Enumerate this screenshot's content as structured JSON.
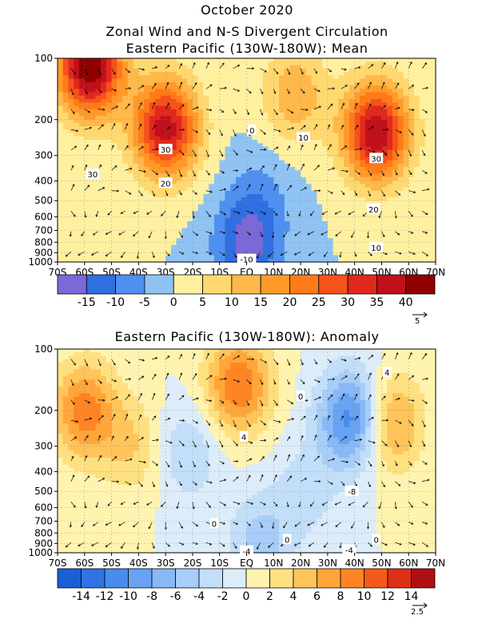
{
  "page": {
    "title_line1": "October 2020"
  },
  "chart_data": [
    {
      "type": "heatmap",
      "title": "Zonal Wind and N-S Divergent Circulation",
      "subtitle": "Eastern Pacific (130W-180W): Mean",
      "x_ticks": [
        "70S",
        "60S",
        "50S",
        "40S",
        "30S",
        "20S",
        "10S",
        "EQ",
        "10N",
        "20N",
        "30N",
        "40N",
        "50N",
        "60N",
        "70N"
      ],
      "x_values": [
        -70,
        -60,
        -50,
        -40,
        -30,
        -20,
        -10,
        0,
        10,
        20,
        30,
        40,
        50,
        60,
        70
      ],
      "y_ticks": [
        "100",
        "200",
        "300",
        "400",
        "500",
        "600",
        "700",
        "800",
        "900",
        "1000"
      ],
      "y_values": [
        100,
        200,
        300,
        400,
        500,
        600,
        700,
        800,
        900,
        1000
      ],
      "xlim": [
        -70,
        70
      ],
      "ylim": [
        1000,
        100
      ],
      "y_scale": "log",
      "colorbar_levels": [
        -20,
        -15,
        -10,
        -5,
        0,
        5,
        10,
        15,
        20,
        25,
        30,
        35,
        40,
        45
      ],
      "colorbar_labels": [
        "-15",
        "-10",
        "-5",
        "0",
        "5",
        "10",
        "15",
        "20",
        "25",
        "30",
        "35",
        "40"
      ],
      "colorbar_colors": [
        "#7b68d9",
        "#2f6fe0",
        "#4f8ff0",
        "#8ec3f4",
        "#fff0a0",
        "#ffd870",
        "#ffb84a",
        "#ff9a2a",
        "#ff7a18",
        "#f5521c",
        "#e0281e",
        "#c0101a",
        "#900000"
      ],
      "contour_labels": [
        {
          "text": "30",
          "lat": -57,
          "p": 370
        },
        {
          "text": "30",
          "lat": -30,
          "p": 280
        },
        {
          "text": "20",
          "lat": -30,
          "p": 410
        },
        {
          "text": "0",
          "lat": 2,
          "p": 225
        },
        {
          "text": "10",
          "lat": 21,
          "p": 245
        },
        {
          "text": "30",
          "lat": 48,
          "p": 310
        },
        {
          "text": "20",
          "lat": 47,
          "p": 550
        },
        {
          "text": "10",
          "lat": 48,
          "p": 850
        },
        {
          "text": "-10",
          "lat": 0,
          "p": 970
        }
      ],
      "field_centers": [
        {
          "lat": -58,
          "p": 110,
          "value": 45
        },
        {
          "lat": -30,
          "p": 220,
          "value": 38
        },
        {
          "lat": 48,
          "p": 230,
          "value": 40
        },
        {
          "lat": 18,
          "p": 150,
          "value": 14
        },
        {
          "lat": 0,
          "p": 850,
          "value": -16
        },
        {
          "lat": 5,
          "p": 500,
          "value": -6
        }
      ],
      "vector_reference": "5",
      "vector_reference_value": 5
    },
    {
      "type": "heatmap",
      "title": "Eastern Pacific (130W-180W): Anomaly",
      "x_ticks": [
        "70S",
        "60S",
        "50S",
        "40S",
        "30S",
        "20S",
        "10S",
        "EQ",
        "10N",
        "20N",
        "30N",
        "40N",
        "50N",
        "60N",
        "70N"
      ],
      "x_values": [
        -70,
        -60,
        -50,
        -40,
        -30,
        -20,
        -10,
        0,
        10,
        20,
        30,
        40,
        50,
        60,
        70
      ],
      "y_ticks": [
        "100",
        "200",
        "300",
        "400",
        "500",
        "600",
        "700",
        "800",
        "900",
        "1000"
      ],
      "y_values": [
        100,
        200,
        300,
        400,
        500,
        600,
        700,
        800,
        900,
        1000
      ],
      "xlim": [
        -70,
        70
      ],
      "ylim": [
        1000,
        100
      ],
      "y_scale": "log",
      "colorbar_levels": [
        -16,
        -14,
        -12,
        -10,
        -8,
        -6,
        -4,
        -2,
        0,
        2,
        4,
        6,
        8,
        10,
        12,
        14,
        16
      ],
      "colorbar_labels": [
        "-14",
        "-12",
        "-10",
        "-8",
        "-6",
        "-4",
        "-2",
        "0",
        "2",
        "4",
        "6",
        "8",
        "10",
        "12",
        "14"
      ],
      "colorbar_colors": [
        "#1a5fd6",
        "#2f73e4",
        "#4a8bee",
        "#68a3f3",
        "#88b9f6",
        "#a7cdf8",
        "#c2def9",
        "#dcecf8",
        "#fff3b0",
        "#ffe080",
        "#ffc45a",
        "#ffa63a",
        "#ff8424",
        "#f55a1a",
        "#de3018",
        "#b00f12"
      ],
      "contour_labels": [
        {
          "text": "4",
          "lat": 52,
          "p": 130
        },
        {
          "text": "0",
          "lat": 20,
          "p": 170
        },
        {
          "text": "4",
          "lat": -1,
          "p": 270
        },
        {
          "text": "-8",
          "lat": 39,
          "p": 500
        },
        {
          "text": "0",
          "lat": -12,
          "p": 720
        },
        {
          "text": "0",
          "lat": 15,
          "p": 860
        },
        {
          "text": "0",
          "lat": 48,
          "p": 860
        },
        {
          "text": "-4",
          "lat": 0,
          "p": 980
        },
        {
          "text": "-4",
          "lat": 38,
          "p": 970
        }
      ],
      "field_centers": [
        {
          "lat": -60,
          "p": 200,
          "value": 9
        },
        {
          "lat": -3,
          "p": 150,
          "value": 10
        },
        {
          "lat": 53,
          "p": 230,
          "value": 8
        },
        {
          "lat": 39,
          "p": 220,
          "value": -12
        },
        {
          "lat": -22,
          "p": 320,
          "value": -4
        },
        {
          "lat": 22,
          "p": 500,
          "value": -3
        },
        {
          "lat": -42,
          "p": 300,
          "value": 4
        },
        {
          "lat": 5,
          "p": 900,
          "value": -5
        }
      ],
      "vector_reference": "2.5",
      "vector_reference_value": 2.5
    }
  ]
}
